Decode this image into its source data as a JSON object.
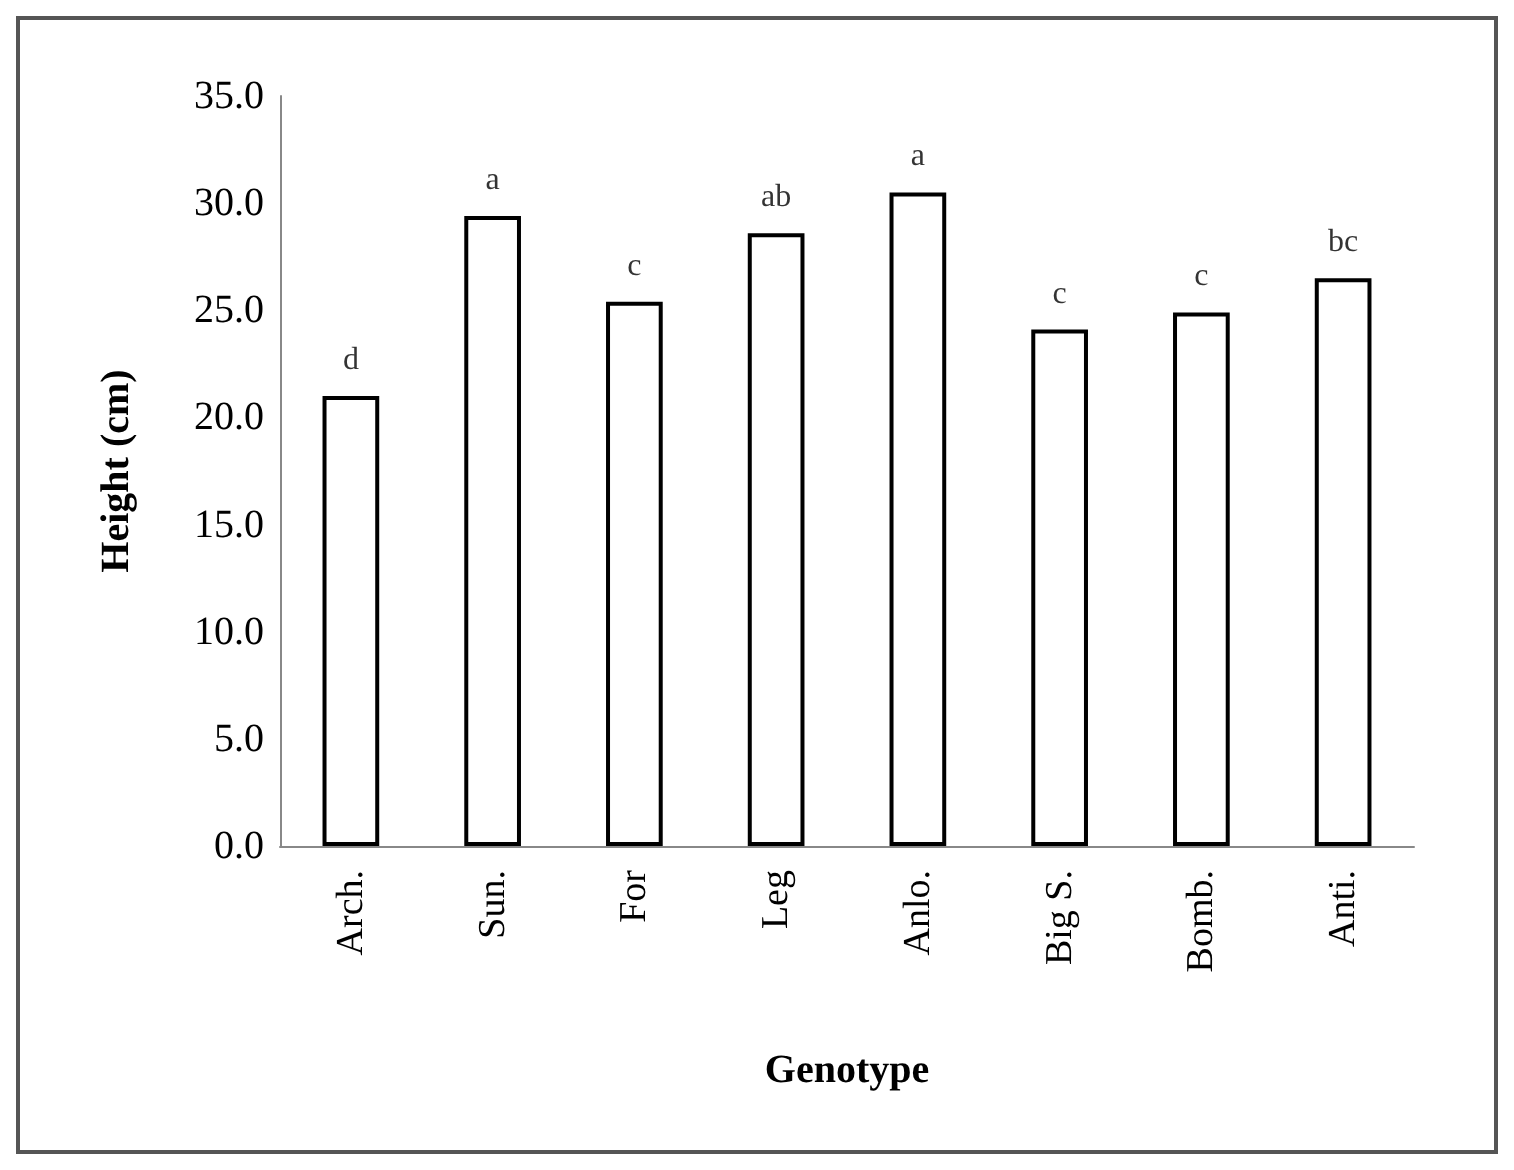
{
  "chart_data": {
    "type": "bar",
    "xlabel": "Genotype",
    "ylabel": "Height (cm)",
    "categories": [
      "Arch.",
      "Sun.",
      "For",
      "Leg",
      "Anlo.",
      "Big S.",
      "Bomb.",
      "Anti."
    ],
    "values": [
      21.0,
      29.4,
      25.4,
      28.6,
      30.5,
      24.1,
      24.9,
      26.5
    ],
    "color": "#ffffff",
    "ylim": [
      0,
      35
    ],
    "yticks": [
      {
        "value": 0,
        "label": "0.0"
      },
      {
        "value": 5,
        "label": "5.0"
      },
      {
        "value": 10,
        "label": "10.0"
      },
      {
        "value": 15,
        "label": "15.0"
      },
      {
        "value": 20,
        "label": "20.0"
      },
      {
        "value": 25,
        "label": "25.0"
      },
      {
        "value": 30,
        "label": "30.0"
      },
      {
        "value": 35,
        "label": "35.0"
      }
    ],
    "annotations": [
      {
        "text": "d",
        "x": "Arch.",
        "y": 21.0
      },
      {
        "text": "a",
        "x": "Sun.",
        "y": 29.4
      },
      {
        "text": "c",
        "x": "For",
        "y": 25.4
      },
      {
        "text": "ab",
        "x": "Leg",
        "y": 28.6
      },
      {
        "text": "a",
        "x": "Anlo.",
        "y": 30.5
      },
      {
        "text": "c",
        "x": "Big S.",
        "y": 24.1
      },
      {
        "text": "c",
        "x": "Bomb.",
        "y": 24.9
      },
      {
        "text": "bc",
        "x": "Anti.",
        "y": 26.5
      }
    ],
    "grid": false
  }
}
